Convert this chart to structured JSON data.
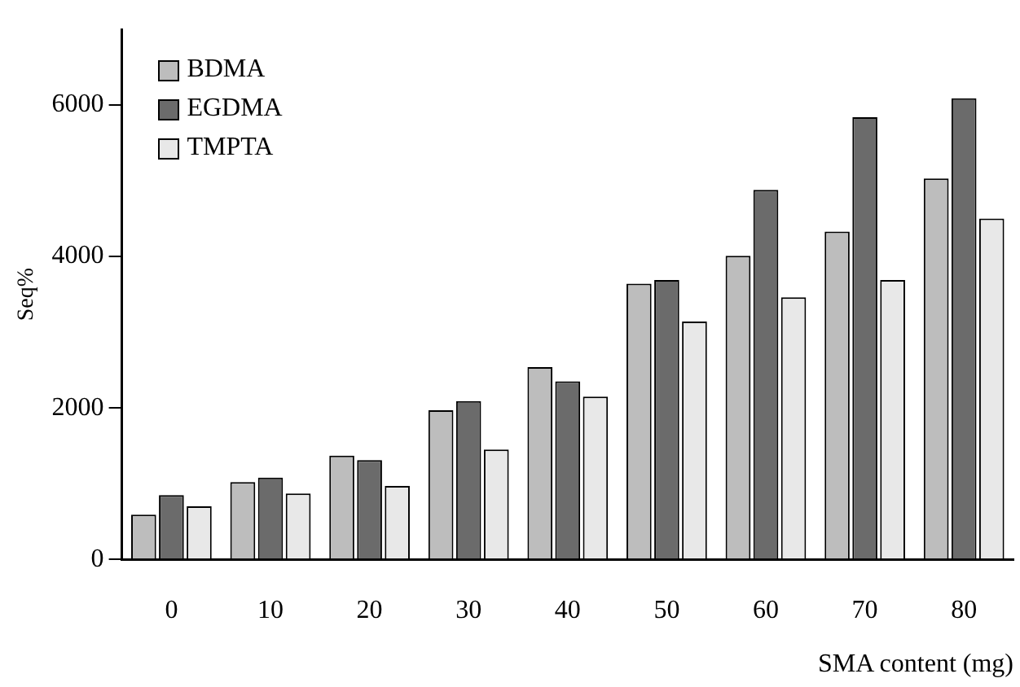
{
  "chart_data": {
    "type": "bar",
    "xlabel": "SMA content (mg)",
    "ylabel": "Seq%",
    "categories": [
      "0",
      "10",
      "20",
      "30",
      "40",
      "50",
      "60",
      "70",
      "80"
    ],
    "series": [
      {
        "name": "BDMA",
        "color": "#bdbdbd",
        "values": [
          590,
          1020,
          1370,
          1970,
          2540,
          3640,
          4010,
          4330,
          5030
        ]
      },
      {
        "name": "EGDMA",
        "color": "#6b6b6b",
        "values": [
          850,
          1080,
          1310,
          2090,
          2350,
          3690,
          4880,
          5840,
          6090
        ]
      },
      {
        "name": "TMPTA",
        "color": "#e8e8e8",
        "values": [
          700,
          870,
          970,
          1450,
          2150,
          3140,
          3460,
          3690,
          4500
        ]
      }
    ],
    "ylim": [
      0,
      7000
    ],
    "yticks": [
      0,
      2000,
      4000,
      6000
    ],
    "grid": false,
    "legend": "top left"
  }
}
